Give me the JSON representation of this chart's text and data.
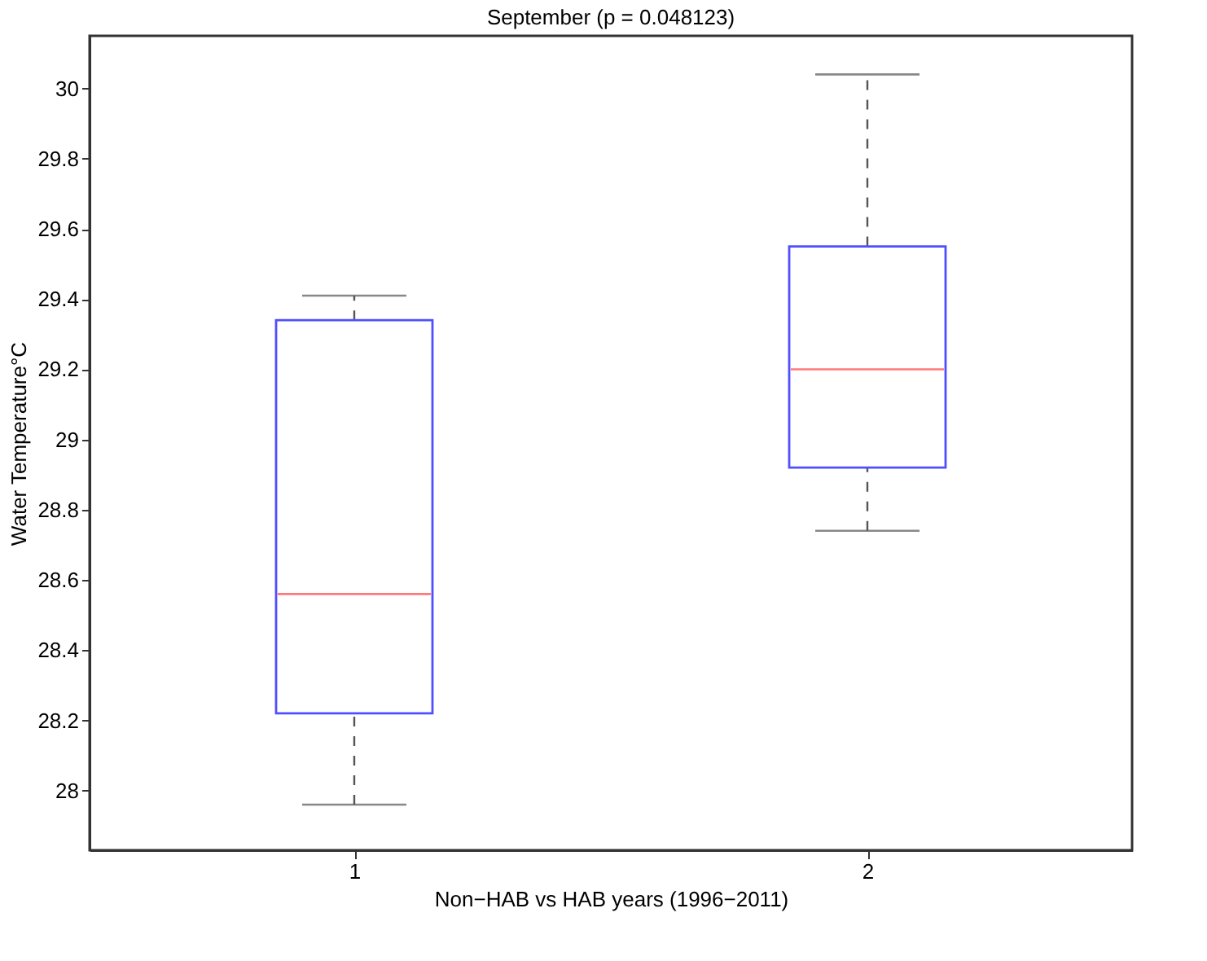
{
  "chart_data": {
    "type": "box",
    "title": "September    (p = 0.048123)",
    "xlabel": "Non−HAB vs HAB years (1996−2011)",
    "ylabel": "Water Temperature°C",
    "categories": [
      "1",
      "2"
    ],
    "boxes": [
      {
        "low": 27.96,
        "q1": 28.22,
        "median": 28.56,
        "q3": 29.34,
        "high": 29.41
      },
      {
        "low": 28.74,
        "q1": 28.92,
        "median": 29.2,
        "q3": 29.55,
        "high": 30.04
      }
    ],
    "ylim": [
      27.83,
      30.15
    ],
    "yticks": [
      28,
      28.2,
      28.4,
      28.6,
      28.8,
      29,
      29.2,
      29.4,
      29.6,
      29.8,
      30
    ],
    "grid": false
  }
}
